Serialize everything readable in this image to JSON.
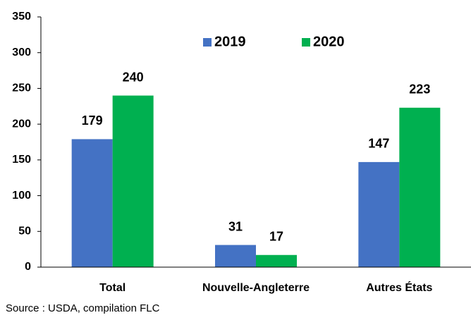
{
  "chart_data": {
    "type": "bar",
    "categories": [
      "Total",
      "Nouvelle-Angleterre",
      "Autres États"
    ],
    "series": [
      {
        "name": "2019",
        "color": "#4472c4",
        "values": [
          179,
          31,
          147
        ]
      },
      {
        "name": "2020",
        "color": "#00b050",
        "values": [
          240,
          17,
          223
        ]
      }
    ],
    "ylim": [
      0,
      350
    ],
    "yticks": [
      0,
      50,
      100,
      150,
      200,
      250,
      300,
      350
    ],
    "grid": false,
    "legend": "top",
    "source": "Source : USDA, compilation FLC"
  }
}
